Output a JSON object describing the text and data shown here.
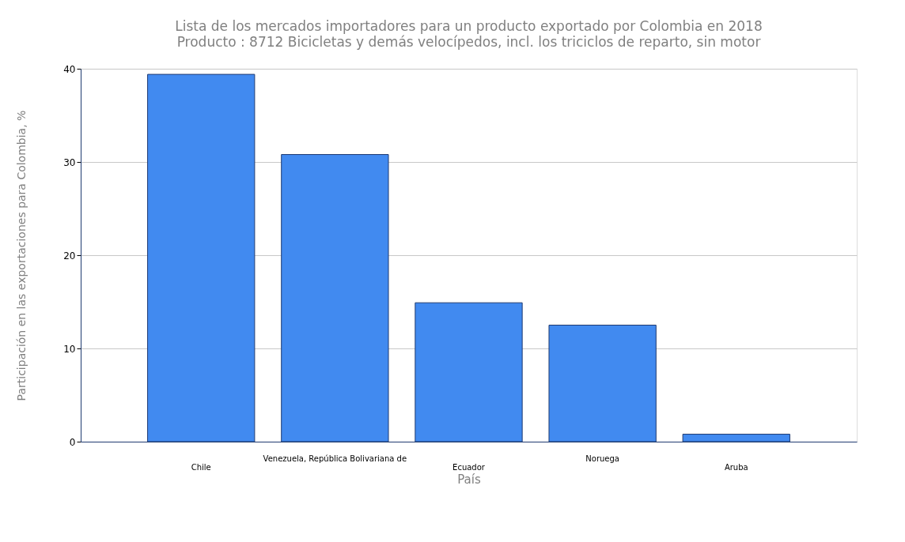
{
  "chart_data": {
    "type": "bar",
    "title": "Lista de los mercados importadores para un producto exportado por Colombia en 2018",
    "subtitle": "Producto : 8712 Bicicletas y demás velocípedos, incl. los triciclos de reparto, sin motor",
    "xlabel": "País",
    "ylabel": "Participación en las exportaciones para Colombia, %",
    "categories": [
      "Chile",
      "Venezuela, República Bolivariana de",
      "Ecuador",
      "Noruega",
      "Aruba"
    ],
    "values": [
      39.4,
      30.8,
      14.9,
      12.5,
      0.8
    ],
    "color": "#418af0",
    "ylim": [
      0,
      40
    ],
    "yticks": [
      0,
      10,
      20,
      30,
      40
    ],
    "grid": "y"
  }
}
